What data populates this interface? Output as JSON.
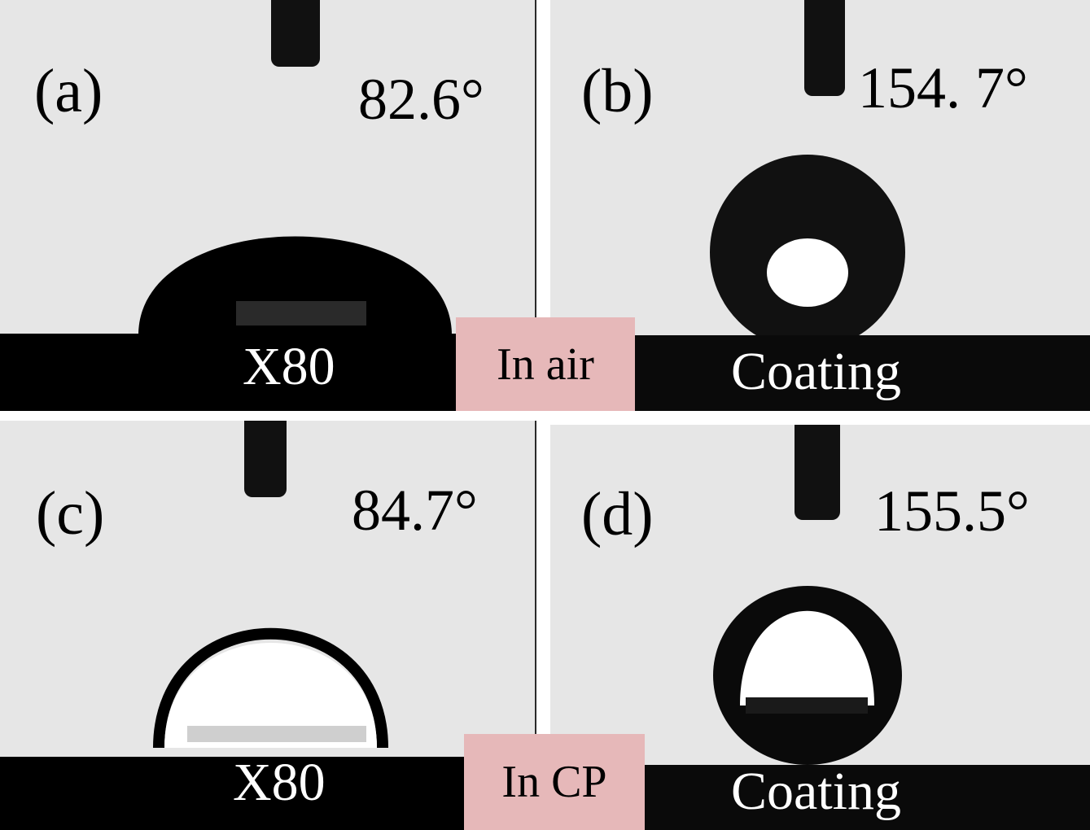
{
  "panels": [
    {
      "id": "a",
      "letter": "(a)",
      "angle": "82.6°",
      "substrate": "X80"
    },
    {
      "id": "b",
      "letter": "(b)",
      "angle": "154. 7°",
      "substrate": "Coating"
    },
    {
      "id": "c",
      "letter": "(c)",
      "angle": "84.7°",
      "substrate": "X80"
    },
    {
      "id": "d",
      "letter": "(d)",
      "angle": "155.5°",
      "substrate": "Coating"
    }
  ],
  "media": {
    "top": "In air",
    "bottom": "In CP"
  },
  "colors": {
    "background": "#e6e6e6",
    "droplet": "#000000",
    "badge": "#e6b8b9"
  }
}
